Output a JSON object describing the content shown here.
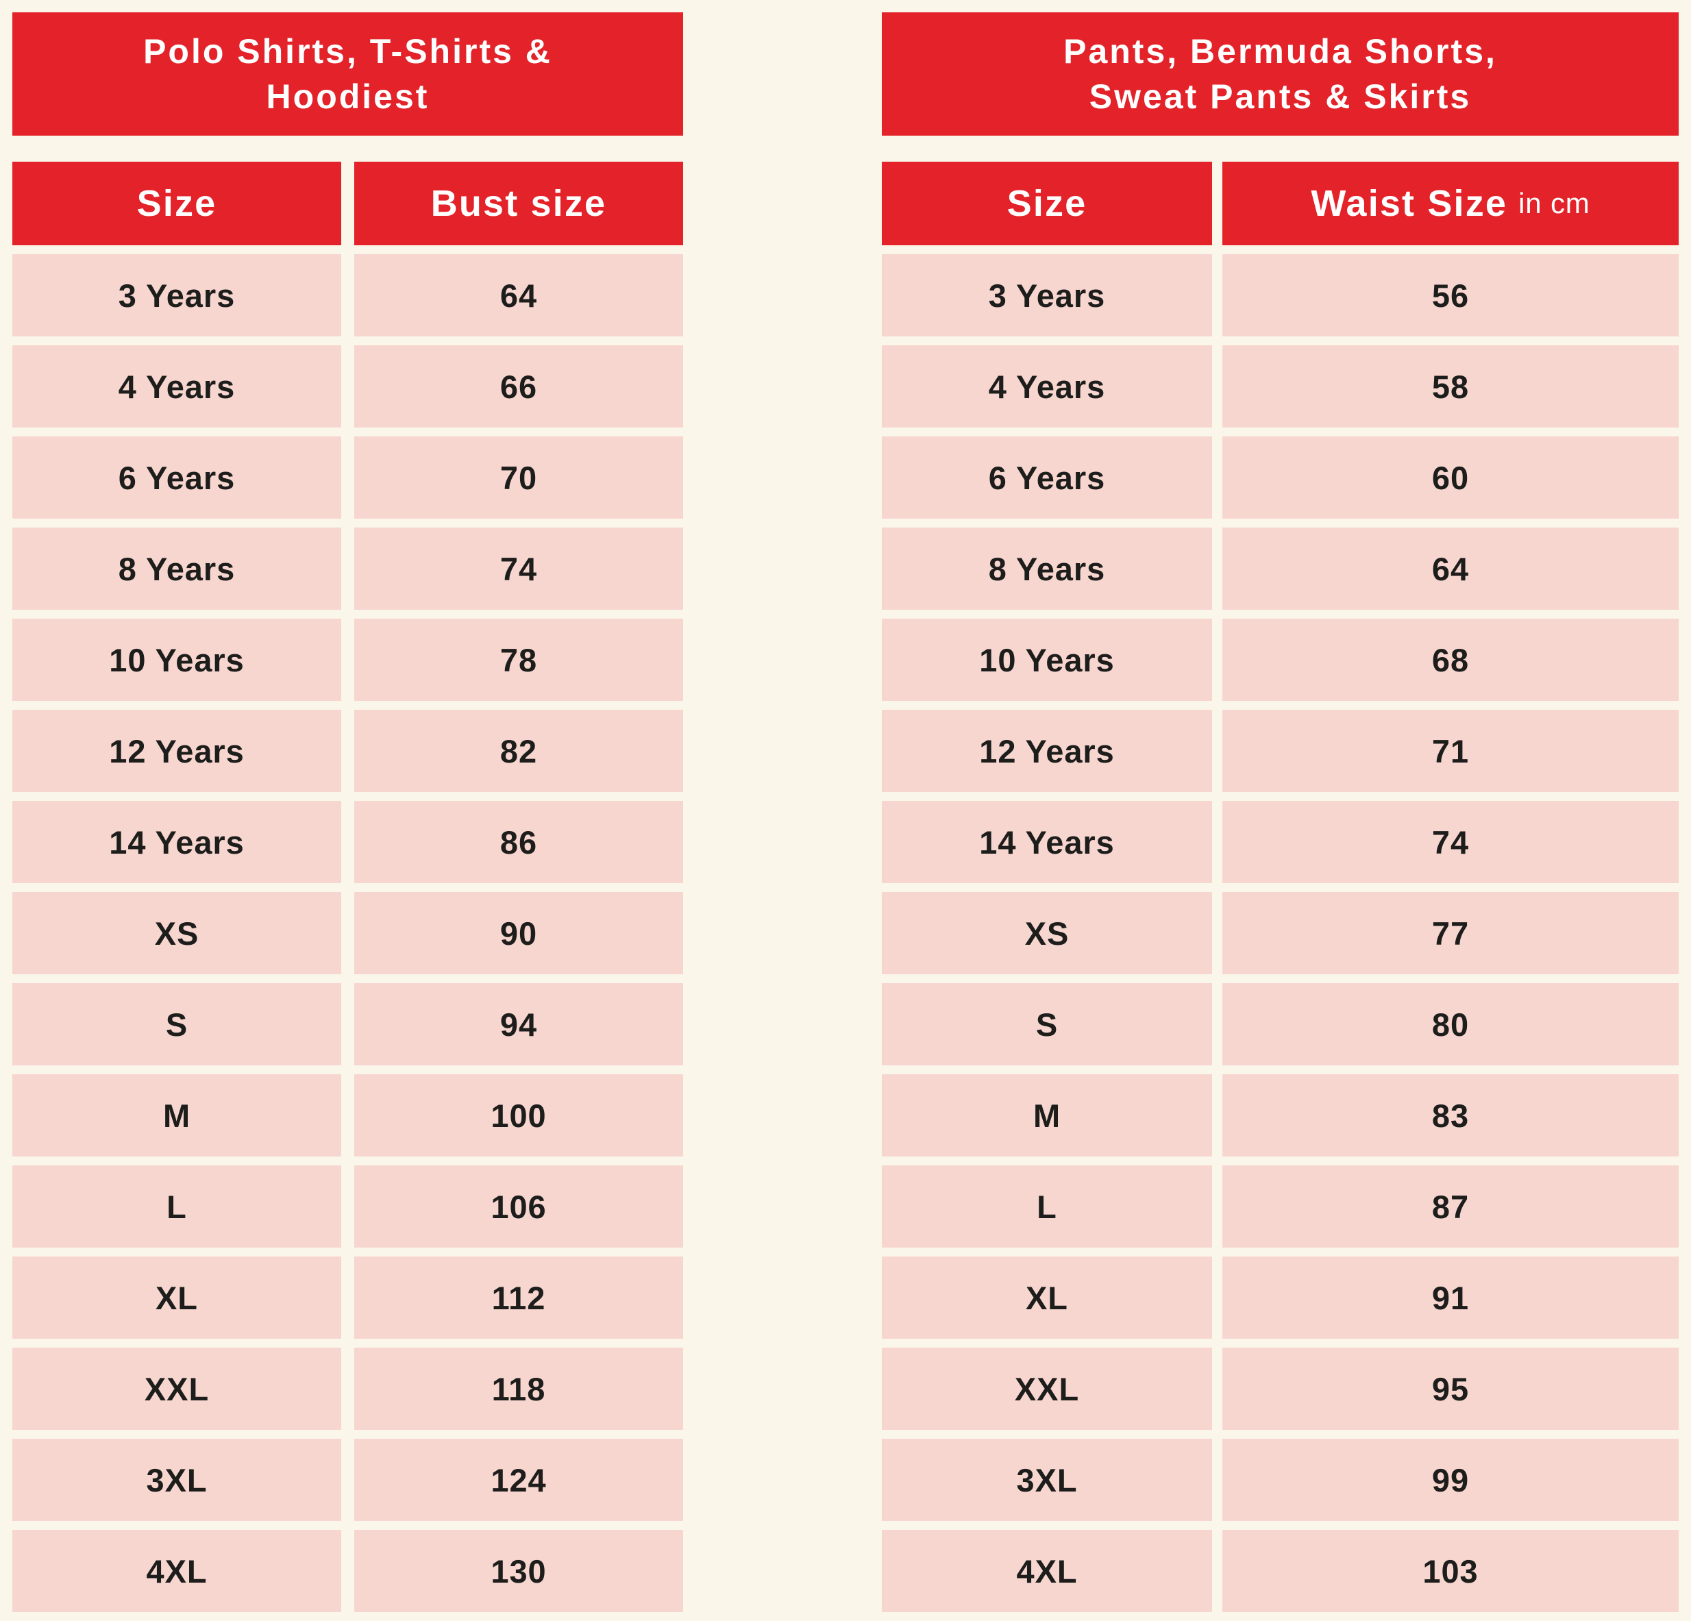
{
  "colors": {
    "accent_red": "#e32329",
    "cell_pink": "#f7d6d0",
    "page_cream": "#fbf6ea",
    "text_dark": "#1d1d1b",
    "text_white": "#ffffff"
  },
  "tables": [
    {
      "title": "Polo Shirts, T-Shirts & Hoodiest",
      "title_lines": [
        "Polo Shirts, T-Shirts &",
        "Hoodiest"
      ],
      "columns": [
        {
          "label": "Size",
          "unit": ""
        },
        {
          "label": "Bust size",
          "unit": ""
        }
      ],
      "rows": [
        [
          "3 Years",
          "64"
        ],
        [
          "4 Years",
          "66"
        ],
        [
          "6 Years",
          "70"
        ],
        [
          "8 Years",
          "74"
        ],
        [
          "10 Years",
          "78"
        ],
        [
          "12 Years",
          "82"
        ],
        [
          "14 Years",
          "86"
        ],
        [
          "XS",
          "90"
        ],
        [
          "S",
          "94"
        ],
        [
          "M",
          "100"
        ],
        [
          "L",
          "106"
        ],
        [
          "XL",
          "112"
        ],
        [
          "XXL",
          "118"
        ],
        [
          "3XL",
          "124"
        ],
        [
          "4XL",
          "130"
        ]
      ]
    },
    {
      "title": "Pants, Bermuda Shorts, Sweat Pants & Skirts",
      "title_lines": [
        "Pants, Bermuda Shorts,",
        "Sweat Pants & Skirts"
      ],
      "columns": [
        {
          "label": "Size",
          "unit": ""
        },
        {
          "label": "Waist Size",
          "unit": "in cm"
        }
      ],
      "rows": [
        [
          "3 Years",
          "56"
        ],
        [
          "4 Years",
          "58"
        ],
        [
          "6 Years",
          "60"
        ],
        [
          "8 Years",
          "64"
        ],
        [
          "10 Years",
          "68"
        ],
        [
          "12 Years",
          "71"
        ],
        [
          "14 Years",
          "74"
        ],
        [
          "XS",
          "77"
        ],
        [
          "S",
          "80"
        ],
        [
          "M",
          "83"
        ],
        [
          "L",
          "87"
        ],
        [
          "XL",
          "91"
        ],
        [
          "XXL",
          "95"
        ],
        [
          "3XL",
          "99"
        ],
        [
          "4XL",
          "103"
        ]
      ]
    }
  ]
}
